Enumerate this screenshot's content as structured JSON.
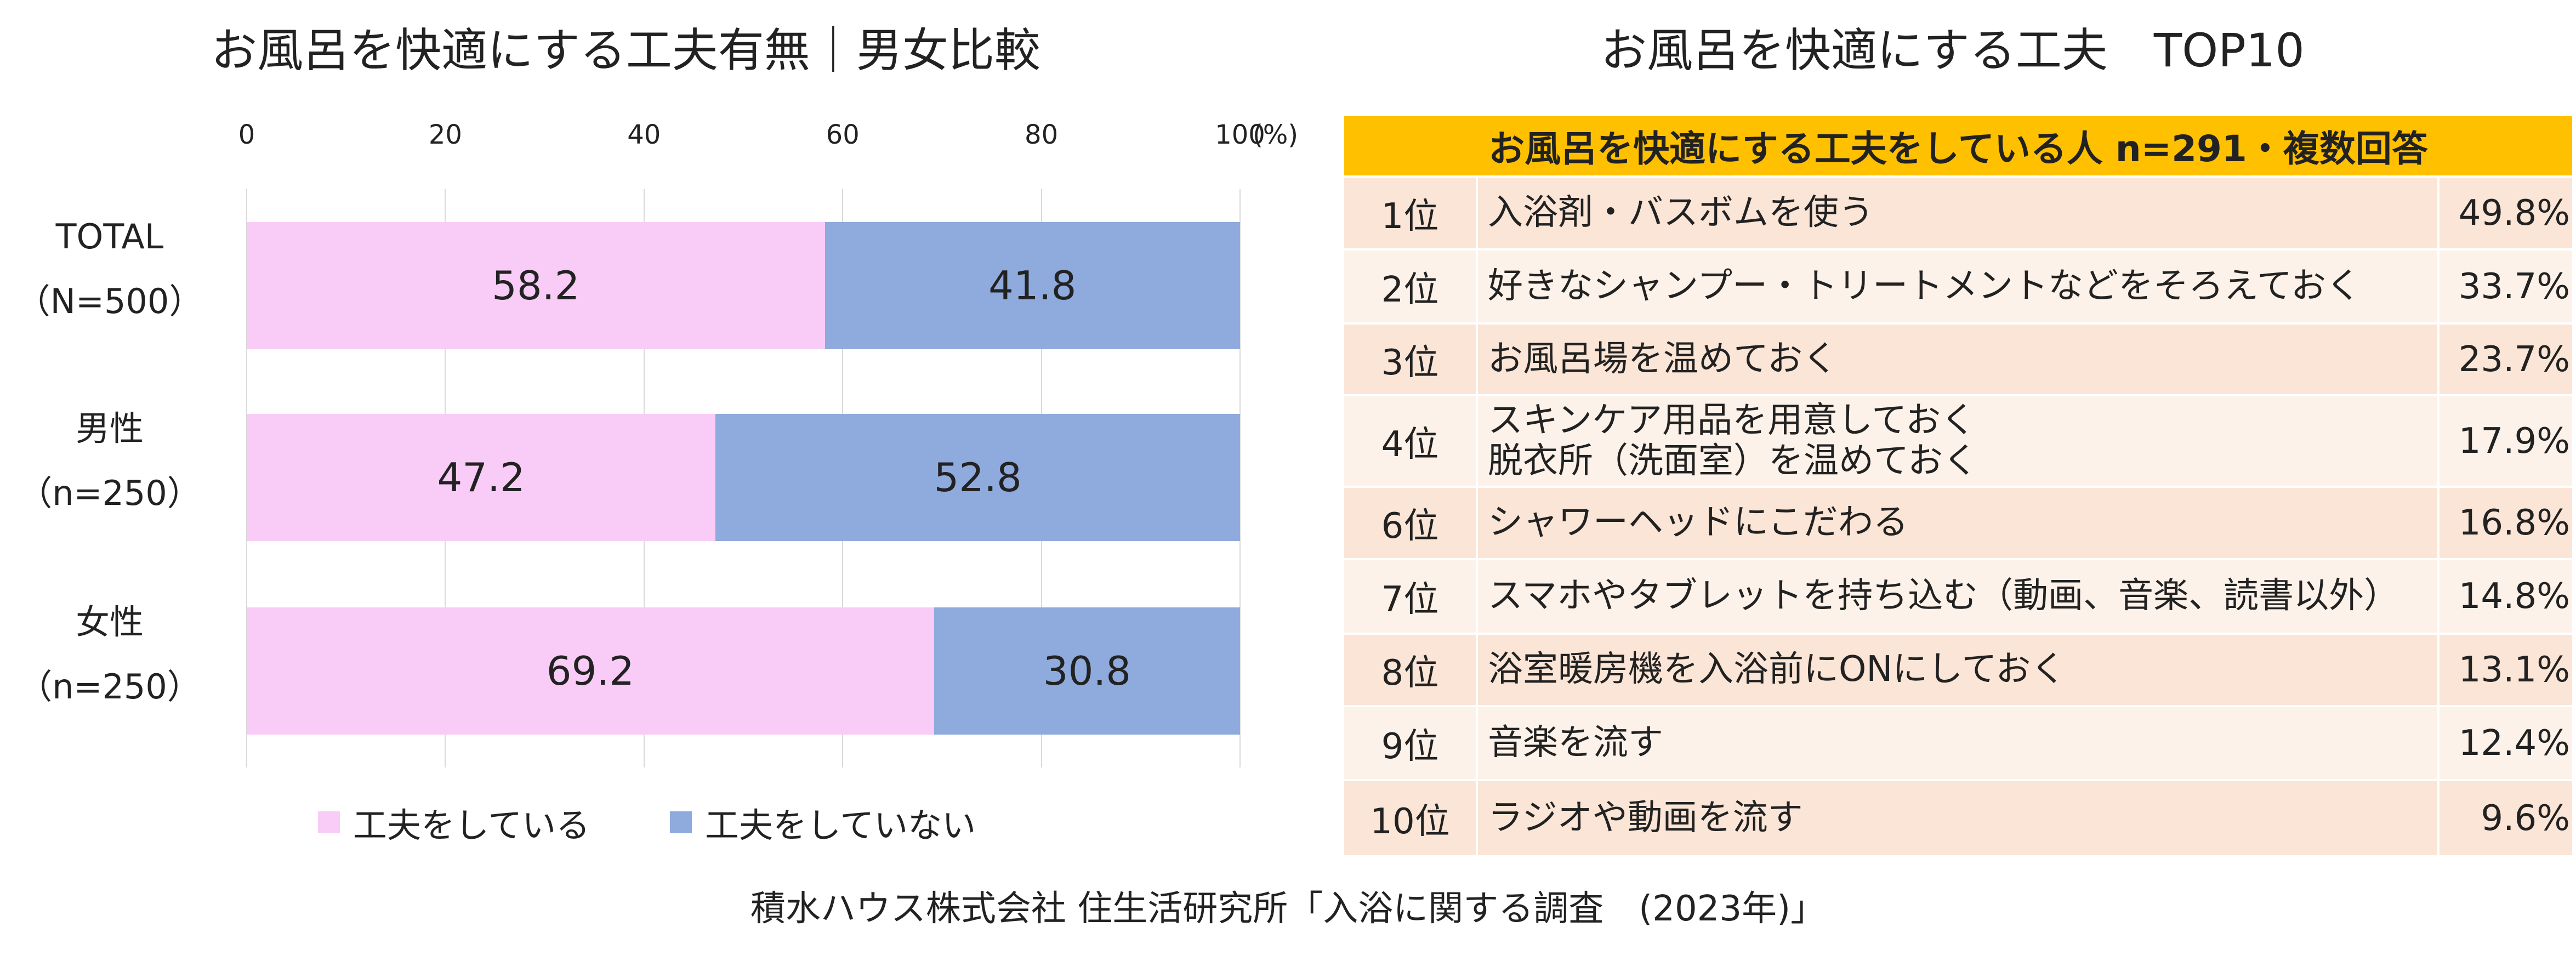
{
  "colors": {
    "doing": "#f9ccf7",
    "not_doing": "#8faadc",
    "header_bg": "#ffc000",
    "row_odd": "#fbe5d6",
    "row_even": "#fdf2e9"
  },
  "left_title": "お風呂を快適にする工夫有無｜男女比較",
  "right_title": "お風呂を快適にする工夫　TOP10",
  "chart_data": {
    "type": "bar",
    "orientation": "horizontal",
    "stacked": true,
    "title": "お風呂を快適にする工夫有無｜男女比較",
    "xlim": [
      0,
      100
    ],
    "x_ticks": [
      "0",
      "20",
      "40",
      "60",
      "80",
      "100"
    ],
    "x_unit": "(%)",
    "categories": [
      {
        "line1": "TOTAL",
        "line2": "（N=500）"
      },
      {
        "line1": "男性",
        "line2": "（n=250）"
      },
      {
        "line1": "女性",
        "line2": "（n=250）"
      }
    ],
    "series": [
      {
        "name": "工夫をしている",
        "values": [
          58.2,
          47.2,
          69.2
        ]
      },
      {
        "name": "工夫をしていない",
        "values": [
          41.8,
          52.8,
          30.8
        ]
      }
    ],
    "legend_position": "bottom",
    "grid": true
  },
  "table": {
    "header": "お風呂を快適にする工夫をしている人 n=291・複数回答",
    "rows": [
      {
        "rank": "1位",
        "lines": [
          "入浴剤・バスボムを使う"
        ],
        "pct": "49.8%"
      },
      {
        "rank": "2位",
        "lines": [
          "好きなシャンプー・トリートメントなどをそろえておく"
        ],
        "pct": "33.7%"
      },
      {
        "rank": "3位",
        "lines": [
          "お風呂場を温めておく"
        ],
        "pct": "23.7%"
      },
      {
        "rank": "4位",
        "lines": [
          "スキンケア用品を用意しておく",
          "脱衣所（洗面室）を温めておく"
        ],
        "pct": "17.9%"
      },
      {
        "rank": "6位",
        "lines": [
          "シャワーヘッドにこだわる"
        ],
        "pct": "16.8%"
      },
      {
        "rank": "7位",
        "lines": [
          "スマホやタブレットを持ち込む（動画、音楽、読書以外）"
        ],
        "pct": "14.8%"
      },
      {
        "rank": "8位",
        "lines": [
          "浴室暖房機を入浴前にONにしておく"
        ],
        "pct": "13.1%"
      },
      {
        "rank": "9位",
        "lines": [
          "音楽を流す"
        ],
        "pct": "12.4%"
      },
      {
        "rank": "10位",
        "lines": [
          "ラジオや動画を流す"
        ],
        "pct": "9.6%"
      }
    ]
  },
  "source": "積水ハウス株式会社 住生活研究所「入浴に関する調査　(2023年)」"
}
